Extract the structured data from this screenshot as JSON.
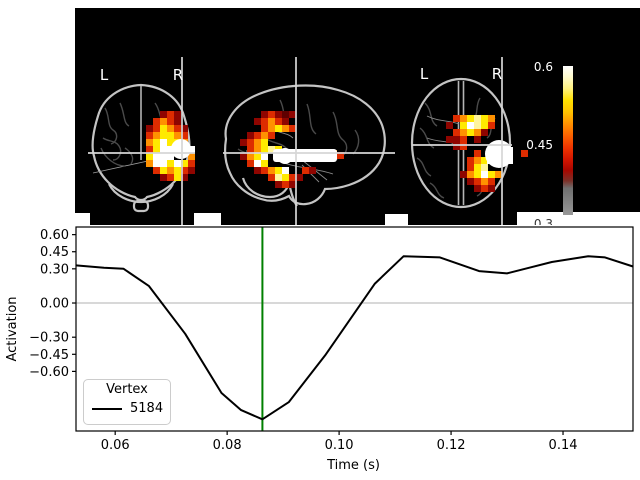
{
  "brain_panel": {
    "background": "#000000",
    "views": [
      {
        "id": "coronal",
        "left_label": "L",
        "right_label": "R"
      },
      {
        "id": "sagittal"
      },
      {
        "id": "axial",
        "left_label": "L",
        "right_label": "R"
      }
    ],
    "crosshair_color": "#d6d6d6",
    "colorbar": {
      "colormap": "hot",
      "gray_below_threshold": true,
      "tick_labels": [
        "0.6",
        "0.45",
        "0.3"
      ]
    }
  },
  "chart_data": {
    "type": "line",
    "title": "",
    "xlabel": "Time (s)",
    "ylabel": "Activation",
    "xlim": [
      0.053,
      0.1525
    ],
    "ylim": [
      -1.123,
      0.667
    ],
    "xticks": [
      0.06,
      0.08,
      0.1,
      0.12,
      0.14
    ],
    "xtick_labels": [
      "0.06",
      "0.08",
      "0.10",
      "0.12",
      "0.14"
    ],
    "yticks": [
      0.6,
      0.45,
      0.3,
      0.0,
      -0.3,
      -0.45,
      -0.6
    ],
    "ytick_labels": [
      "0.60",
      "0.45",
      "0.30",
      "0.00",
      "−0.30",
      "−0.45",
      "−0.60"
    ],
    "grid": "zero-line-only",
    "zero_line_color": "#b0b0b0",
    "vline": {
      "x": 0.0863,
      "color": "#008000"
    },
    "line_color": "#000000",
    "legend": {
      "title": "Vertex",
      "position": "lower left"
    },
    "series": [
      {
        "name": "5184",
        "color": "#000000",
        "x": [
          0.053,
          0.058,
          0.0615,
          0.066,
          0.0725,
          0.079,
          0.0825,
          0.0863,
          0.091,
          0.0975,
          0.1064,
          0.1115,
          0.118,
          0.125,
          0.13,
          0.134,
          0.138,
          0.1445,
          0.1475,
          0.1525
        ],
        "y": [
          0.33,
          0.31,
          0.3,
          0.15,
          -0.27,
          -0.79,
          -0.94,
          -1.02,
          -0.87,
          -0.46,
          0.17,
          0.41,
          0.4,
          0.28,
          0.26,
          0.31,
          0.36,
          0.41,
          0.4,
          0.32
        ]
      }
    ]
  }
}
